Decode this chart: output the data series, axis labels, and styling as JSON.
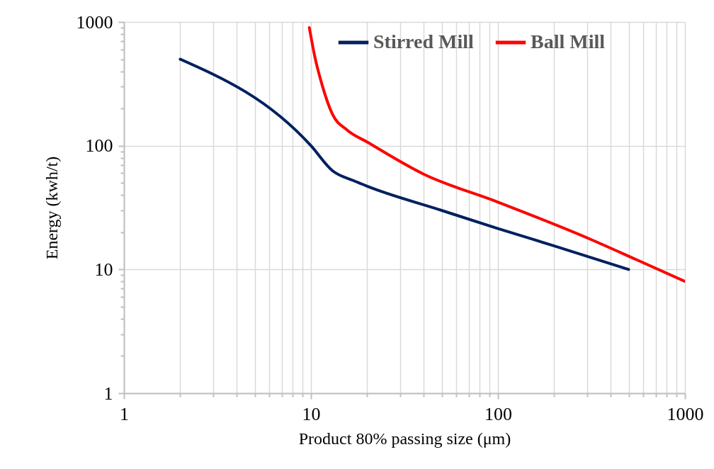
{
  "chart_data": {
    "type": "line",
    "xlabel": "Product 80% passing size (μm)",
    "ylabel": "Energy (kwh/t)",
    "log": "xy",
    "grid": true,
    "legend": "top right",
    "line_style": "solid",
    "marker": "none",
    "xlim": [
      1,
      1000
    ],
    "ylim": [
      1,
      1000
    ],
    "xticks": [
      1,
      {
        "value": 2,
        "label": null
      },
      {
        "value": 3,
        "label": null
      },
      {
        "value": 4,
        "label": null
      },
      {
        "value": 5,
        "label": null
      },
      {
        "value": 6,
        "label": null
      },
      {
        "value": 7,
        "label": null
      },
      {
        "value": 8,
        "label": null
      },
      {
        "value": 9,
        "label": null
      },
      10,
      {
        "value": 20,
        "label": null
      },
      {
        "value": 30,
        "label": null
      },
      {
        "value": 40,
        "label": null
      },
      {
        "value": 50,
        "label": null
      },
      {
        "value": 60,
        "label": null
      },
      {
        "value": 70,
        "label": null
      },
      {
        "value": 80,
        "label": null
      },
      {
        "value": 90,
        "label": null
      },
      100,
      {
        "value": 200,
        "label": null
      },
      {
        "value": 300,
        "label": null
      },
      {
        "value": 400,
        "label": null
      },
      {
        "value": 500,
        "label": null
      },
      {
        "value": 600,
        "label": null
      },
      {
        "value": 700,
        "label": null
      },
      {
        "value": 800,
        "label": null
      },
      {
        "value": 900,
        "label": null
      },
      1000
    ],
    "yticks": [
      1,
      {
        "value": 2,
        "label": null
      },
      {
        "value": 3,
        "label": null
      },
      {
        "value": 4,
        "label": null
      },
      {
        "value": 5,
        "label": null
      },
      {
        "value": 6,
        "label": null
      },
      {
        "value": 7,
        "label": null
      },
      {
        "value": 8,
        "label": null
      },
      {
        "value": 9,
        "label": null
      },
      10,
      {
        "value": 20,
        "label": null
      },
      {
        "value": 30,
        "label": null
      },
      {
        "value": 40,
        "label": null
      },
      {
        "value": 50,
        "label": null
      },
      {
        "value": 60,
        "label": null
      },
      {
        "value": 70,
        "label": null
      },
      {
        "value": 80,
        "label": null
      },
      {
        "value": 90,
        "label": null
      },
      100,
      {
        "value": 200,
        "label": null
      },
      {
        "value": 300,
        "label": null
      },
      {
        "value": 400,
        "label": null
      },
      {
        "value": 500,
        "label": null
      },
      {
        "value": 600,
        "label": null
      },
      {
        "value": 700,
        "label": null
      },
      {
        "value": 800,
        "label": null
      },
      {
        "value": 900,
        "label": null
      },
      1000
    ],
    "series": [
      {
        "name": "Stirred Mill",
        "color": "#002060",
        "x": [
          2,
          10,
          13,
          17,
          20,
          50,
          100,
          200,
          500
        ],
        "values": [
          500,
          100,
          63,
          52,
          47,
          30,
          21.4,
          15.5,
          10
        ]
      },
      {
        "name": "Ball Mill",
        "color": "#ff0000",
        "x": [
          9.8,
          10.5,
          11.5,
          13,
          15.6,
          20,
          40,
          100,
          300,
          550,
          1000
        ],
        "values": [
          900,
          520,
          306,
          181,
          134,
          107,
          59,
          35,
          18,
          12,
          8
        ]
      }
    ]
  }
}
